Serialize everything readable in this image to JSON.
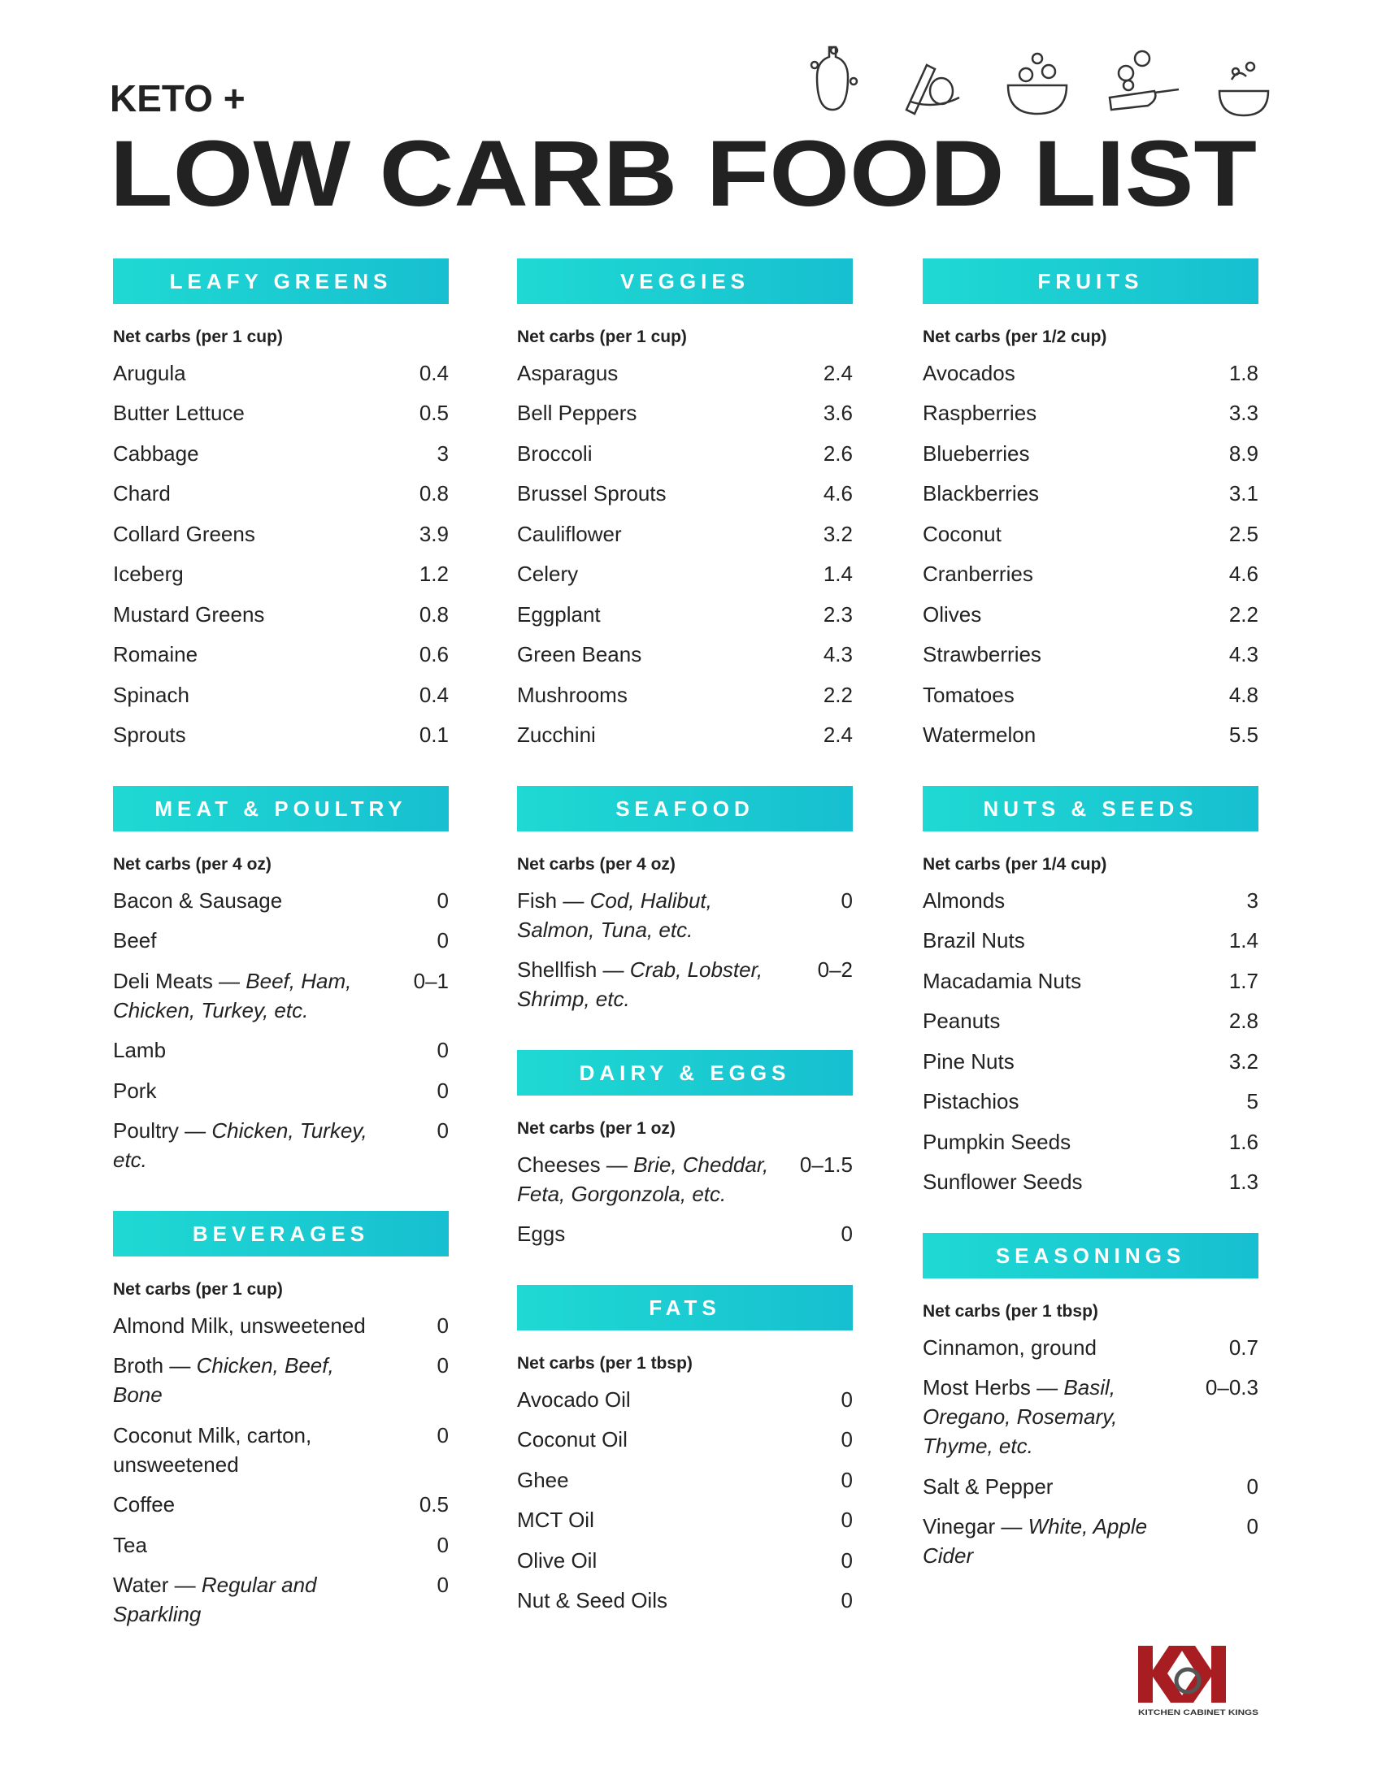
{
  "header": {
    "pre_title": "KETO +",
    "title": "LOW CARB FOOD LIST"
  },
  "columns": [
    {
      "sections": [
        {
          "title": "LEAFY GREENS",
          "unit": "Net carbs (per 1 cup)",
          "items": [
            {
              "name": "Arugula",
              "value": "0.4"
            },
            {
              "name": "Butter Lettuce",
              "value": "0.5"
            },
            {
              "name": "Cabbage",
              "value": "3"
            },
            {
              "name": "Chard",
              "value": "0.8"
            },
            {
              "name": "Collard Greens",
              "value": "3.9"
            },
            {
              "name": "Iceberg",
              "value": "1.2"
            },
            {
              "name": "Mustard Greens",
              "value": "0.8"
            },
            {
              "name": "Romaine",
              "value": "0.6"
            },
            {
              "name": "Spinach",
              "value": "0.4"
            },
            {
              "name": "Sprouts",
              "value": "0.1"
            }
          ]
        },
        {
          "title": "MEAT & POULTRY",
          "unit": "Net carbs (per 4 oz)",
          "items": [
            {
              "name": "Bacon & Sausage",
              "value": "0"
            },
            {
              "name": "Beef",
              "value": "0"
            },
            {
              "name": "Deli Meats —",
              "detail": "Beef, Ham, Chicken, Turkey, etc.",
              "value": "0–1"
            },
            {
              "name": "Lamb",
              "value": "0"
            },
            {
              "name": "Pork",
              "value": "0"
            },
            {
              "name": "Poultry —",
              "detail": "Chicken, Turkey, etc.",
              "value": "0"
            }
          ]
        },
        {
          "title": "BEVERAGES",
          "unit": "Net carbs (per 1 cup)",
          "items": [
            {
              "name": "Almond Milk, unsweetened",
              "value": "0"
            },
            {
              "name": "Broth —",
              "detail": "Chicken, Beef, Bone",
              "value": "0"
            },
            {
              "name": "Coconut Milk, carton, unsweetened",
              "value": "0"
            },
            {
              "name": "Coffee",
              "value": "0.5"
            },
            {
              "name": "Tea",
              "value": "0"
            },
            {
              "name": "Water —",
              "detail": "Regular and Sparkling",
              "value": "0"
            }
          ]
        }
      ]
    },
    {
      "sections": [
        {
          "title": "VEGGIES",
          "unit": "Net carbs (per 1 cup)",
          "items": [
            {
              "name": "Asparagus",
              "value": "2.4"
            },
            {
              "name": "Bell Peppers",
              "value": "3.6"
            },
            {
              "name": "Broccoli",
              "value": "2.6"
            },
            {
              "name": "Brussel Sprouts",
              "value": "4.6"
            },
            {
              "name": "Cauliflower",
              "value": "3.2"
            },
            {
              "name": "Celery",
              "value": "1.4"
            },
            {
              "name": "Eggplant",
              "value": "2.3"
            },
            {
              "name": "Green Beans",
              "value": "4.3"
            },
            {
              "name": "Mushrooms",
              "value": "2.2"
            },
            {
              "name": "Zucchini",
              "value": "2.4"
            }
          ]
        },
        {
          "title": "SEAFOOD",
          "unit": "Net carbs (per 4 oz)",
          "items": [
            {
              "name": "Fish —",
              "detail": "Cod, Halibut, Salmon, Tuna, etc.",
              "value": "0"
            },
            {
              "name": "Shellfish —",
              "detail": "Crab, Lobster, Shrimp, etc.",
              "value": "0–2"
            }
          ]
        },
        {
          "title": "DAIRY & EGGS",
          "unit": "Net carbs (per 1 oz)",
          "items": [
            {
              "name": "Cheeses —",
              "detail": "Brie, Cheddar, Feta, Gorgonzola, etc.",
              "value": "0–1.5"
            },
            {
              "name": "Eggs",
              "value": "0"
            }
          ]
        },
        {
          "title": "FATS",
          "unit": "Net carbs (per 1 tbsp)",
          "items": [
            {
              "name": "Avocado Oil",
              "value": "0"
            },
            {
              "name": "Coconut Oil",
              "value": "0"
            },
            {
              "name": "Ghee",
              "value": "0"
            },
            {
              "name": "MCT Oil",
              "value": "0"
            },
            {
              "name": "Olive Oil",
              "value": "0"
            },
            {
              "name": "Nut & Seed Oils",
              "value": "0"
            }
          ]
        }
      ]
    },
    {
      "sections": [
        {
          "title": "FRUITS",
          "unit": "Net carbs (per 1/2 cup)",
          "items": [
            {
              "name": "Avocados",
              "value": "1.8"
            },
            {
              "name": "Raspberries",
              "value": "3.3"
            },
            {
              "name": "Blueberries",
              "value": "8.9"
            },
            {
              "name": "Blackberries",
              "value": "3.1"
            },
            {
              "name": "Coconut",
              "value": "2.5"
            },
            {
              "name": "Cranberries",
              "value": "4.6"
            },
            {
              "name": "Olives",
              "value": "2.2"
            },
            {
              "name": "Strawberries",
              "value": "4.3"
            },
            {
              "name": "Tomatoes",
              "value": "4.8"
            },
            {
              "name": "Watermelon",
              "value": "5.5"
            }
          ]
        },
        {
          "title": "NUTS & SEEDS",
          "unit": "Net carbs (per 1/4 cup)",
          "items": [
            {
              "name": "Almonds",
              "value": "3"
            },
            {
              "name": "Brazil Nuts",
              "value": "1.4"
            },
            {
              "name": "Macadamia Nuts",
              "value": "1.7"
            },
            {
              "name": "Peanuts",
              "value": "2.8"
            },
            {
              "name": "Pine Nuts",
              "value": "3.2"
            },
            {
              "name": "Pistachios",
              "value": "5"
            },
            {
              "name": "Pumpkin Seeds",
              "value": "1.6"
            },
            {
              "name": "Sunflower Seeds",
              "value": "1.3"
            }
          ]
        },
        {
          "title": "SEASONINGS",
          "unit": "Net carbs (per 1 tbsp)",
          "items": [
            {
              "name": "Cinnamon, ground",
              "value": "0.7"
            },
            {
              "name": "Most Herbs —",
              "detail": "Basil, Oregano, Rosemary, Thyme, etc.",
              "value": "0–0.3"
            },
            {
              "name": "Salt & Pepper",
              "value": "0"
            },
            {
              "name": "Vinegar —",
              "detail": "White, Apple Cider",
              "value": "0"
            }
          ]
        }
      ]
    }
  ],
  "logo": {
    "caption": "KITCHEN CABINET KINGS"
  }
}
